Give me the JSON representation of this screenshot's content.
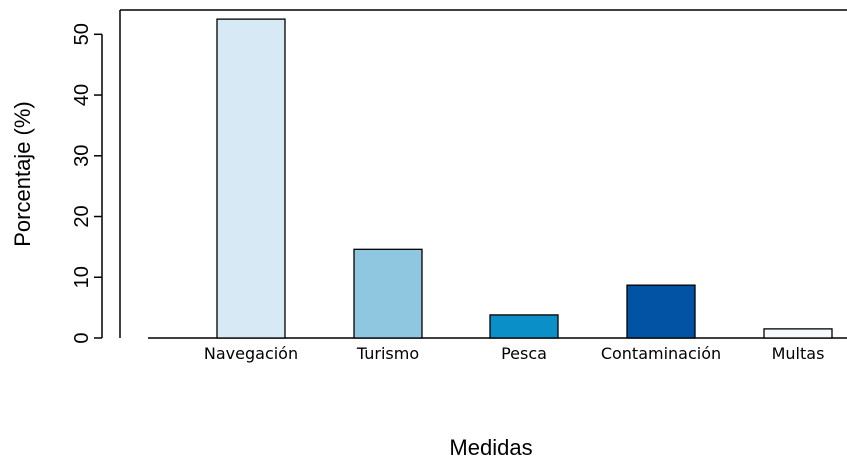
{
  "chart_data": {
    "type": "bar",
    "title": "",
    "xlabel": "Medidas",
    "ylabel": "Porcentaje (%)",
    "categories": [
      "Navegación",
      "Turismo",
      "Pesca",
      "Contaminación",
      "Multas"
    ],
    "values": [
      52.5,
      14.6,
      3.8,
      8.7,
      1.5
    ],
    "colors": [
      "#d6e9f4",
      "#8fc7e1",
      "#0b8fc8",
      "#0353a4",
      "#f6fafd"
    ],
    "ylim": [
      0,
      54
    ],
    "yticks": [
      0,
      10,
      20,
      30,
      40,
      50
    ],
    "grid": false,
    "legend": "none"
  }
}
